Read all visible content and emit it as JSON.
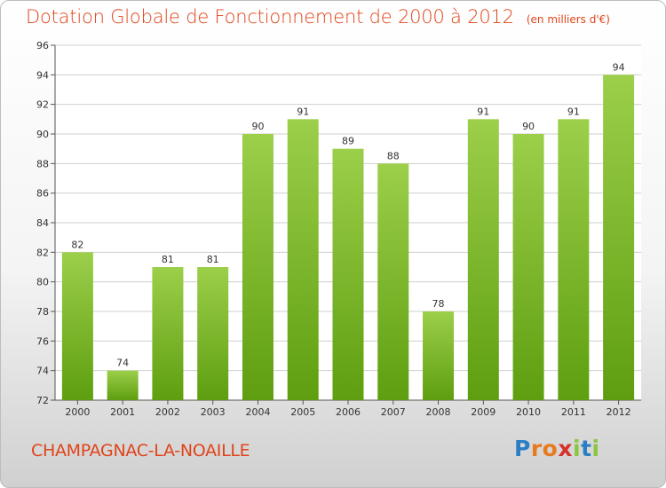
{
  "chart_data": {
    "type": "bar",
    "title": "Dotation Globale de Fonctionnement de 2000 à 2012",
    "subtitle": "(en milliers d'€)",
    "categories": [
      "2000",
      "2001",
      "2002",
      "2003",
      "2004",
      "2005",
      "2006",
      "2007",
      "2008",
      "2009",
      "2010",
      "2011",
      "2012"
    ],
    "values": [
      82,
      74,
      81,
      81,
      90,
      91,
      89,
      88,
      78,
      91,
      90,
      91,
      94
    ],
    "ylim": [
      72,
      96
    ],
    "yticks": [
      72,
      74,
      76,
      78,
      80,
      82,
      84,
      86,
      88,
      90,
      92,
      94,
      96
    ],
    "grid": true,
    "bar_color_light": "#9ccf4a",
    "bar_color_dark": "#5e9e10"
  },
  "footer": {
    "commune": "CHAMPAGNAC-LA-NOAILLE",
    "brand_letters": [
      {
        "char": "P",
        "color": "#2a7fc4"
      },
      {
        "char": "r",
        "color": "#e87a1e"
      },
      {
        "char": "o",
        "color": "#e87a1e"
      },
      {
        "char": "x",
        "color": "#d6312b"
      },
      {
        "char": "i",
        "color": "#8cc63f"
      },
      {
        "char": "t",
        "color": "#2a7fc4"
      },
      {
        "char": "i",
        "color": "#8cc63f"
      }
    ]
  }
}
